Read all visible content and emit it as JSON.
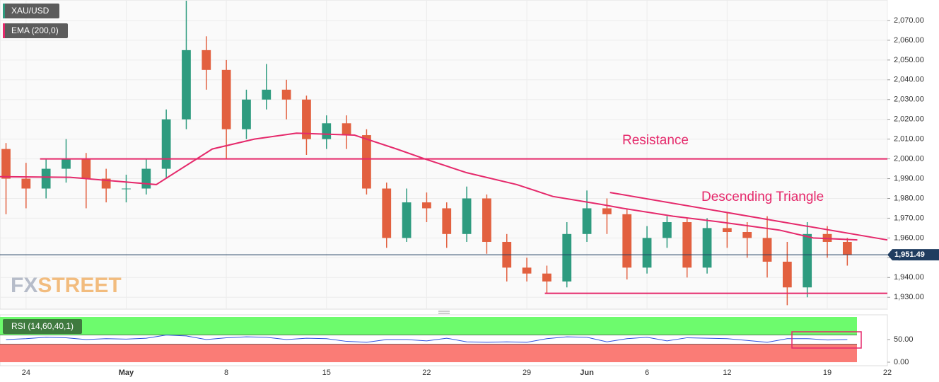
{
  "chart_data": [
    {
      "type": "candlestick",
      "legend": [
        "XAU/USD",
        "EMA (200,0)"
      ],
      "x": [
        -1,
        0,
        1,
        2,
        3,
        4,
        5,
        6,
        7,
        8,
        9,
        10,
        11,
        12,
        13,
        14,
        15,
        16,
        17,
        18,
        19,
        20,
        21,
        22,
        23,
        24,
        25,
        26,
        27,
        28,
        29,
        30,
        31,
        32,
        33,
        34,
        35,
        36,
        37,
        38,
        39,
        40,
        41
      ],
      "open": [
        2005,
        1990,
        1985,
        1995,
        2000,
        1990,
        1985,
        1985,
        1995,
        2020,
        2055,
        2045,
        2015,
        2030,
        2035,
        2030,
        2010,
        2018,
        2012,
        1985,
        1960,
        1978,
        1975,
        1962,
        1980,
        1958,
        1945,
        1942,
        1938,
        1962,
        1975,
        1972,
        1945,
        1960,
        1968,
        1945,
        1965,
        1963,
        1960,
        1948,
        1935,
        1962,
        1958
      ],
      "high": [
        2008,
        1998,
        2000,
        2010,
        2003,
        1995,
        1992,
        2000,
        2025,
        2080,
        2062,
        2050,
        2035,
        2048,
        2040,
        2032,
        2022,
        2022,
        2015,
        1988,
        1985,
        1983,
        1978,
        1986,
        1982,
        1962,
        1950,
        1946,
        1968,
        1984,
        1980,
        1975,
        1966,
        1971,
        1970,
        1970,
        1973,
        1968,
        1971,
        1958,
        1968,
        1966,
        1960
      ],
      "low": [
        1972,
        1975,
        1980,
        1988,
        1975,
        1978,
        1978,
        1982,
        1990,
        2015,
        2035,
        2000,
        2010,
        2025,
        2020,
        2002,
        2005,
        2005,
        1982,
        1955,
        1958,
        1968,
        1955,
        1958,
        1952,
        1938,
        1938,
        1932,
        1935,
        1958,
        1962,
        1939,
        1942,
        1955,
        1940,
        1942,
        1955,
        1950,
        1940,
        1926,
        1930,
        1950,
        1946
      ],
      "close": [
        1990,
        1985,
        1995,
        2000,
        1990,
        1985,
        1985,
        1995,
        2020,
        2055,
        2045,
        2015,
        2030,
        2035,
        2030,
        2010,
        2018,
        2012,
        1985,
        1960,
        1978,
        1975,
        1962,
        1980,
        1958,
        1945,
        1942,
        1938,
        1962,
        1975,
        1972,
        1945,
        1960,
        1968,
        1945,
        1965,
        1963,
        1960,
        1948,
        1935,
        1962,
        1958,
        1951.49
      ],
      "up_color": "#2e9b7f",
      "down_color": "#e2603f",
      "ema": {
        "color": "#e5296b",
        "x": [
          -1.3,
          2.2,
          6.5,
          9.3,
          11.4,
          13.5,
          16.4,
          18.5,
          19.9,
          22,
          24.5,
          26.3,
          28.7,
          29.8,
          32.3,
          34.7,
          37.6,
          39.3,
          41.5
        ],
        "y": [
          1991,
          1990.7,
          1987,
          2005,
          2010,
          2013,
          2012,
          2005,
          2000,
          1993,
          1987,
          1981,
          1977,
          1975,
          1971,
          1968,
          1964,
          1960,
          1959
        ]
      },
      "trend_lines": {
        "color": "#e5296b",
        "lines": [
          {
            "x": [
              0.7,
              43
            ],
            "y": [
              2000,
              2000
            ]
          },
          {
            "x": [
              25.9,
              43
            ],
            "y": [
              1932,
              1932
            ]
          },
          {
            "x": [
              29.15,
              43
            ],
            "y": [
              1983,
              1959
            ]
          }
        ]
      },
      "annotations": [
        "Resistance",
        "Descending Triangle"
      ],
      "watermark": [
        "FX",
        "STREET"
      ],
      "last_price": {
        "value": 1951.49,
        "label": "1,951.49"
      },
      "xlim": [
        -1.3,
        43
      ],
      "ylim": [
        1924,
        2080
      ],
      "yticks": [
        {
          "value": 1930,
          "label": "1,930.00"
        },
        {
          "value": 1940,
          "label": "1,940.00"
        },
        {
          "value": 1950,
          "label": "1,950.00"
        },
        {
          "value": 1960,
          "label": "1,960.00"
        },
        {
          "value": 1970,
          "label": "1,970.00"
        },
        {
          "value": 1980,
          "label": "1,980.00"
        },
        {
          "value": 1990,
          "label": "1,990.00"
        },
        {
          "value": 2000,
          "label": "2,000.00"
        },
        {
          "value": 2010,
          "label": "2,010.00"
        },
        {
          "value": 2020,
          "label": "2,020.00"
        },
        {
          "value": 2030,
          "label": "2,030.00"
        },
        {
          "value": 2040,
          "label": "2,040.00"
        },
        {
          "value": 2050,
          "label": "2,050.00"
        },
        {
          "value": 2060,
          "label": "2,060.00"
        },
        {
          "value": 2070,
          "label": "2,070.00"
        }
      ],
      "xticks": [
        {
          "value": 0,
          "label": "24"
        },
        {
          "value": 5,
          "label": "May"
        },
        {
          "value": 10,
          "label": "8"
        },
        {
          "value": 15,
          "label": "15"
        },
        {
          "value": 20,
          "label": "22"
        },
        {
          "value": 25,
          "label": "29"
        },
        {
          "value": 28,
          "label": "Jun"
        },
        {
          "value": 31,
          "label": "6"
        },
        {
          "value": 35,
          "label": "12"
        },
        {
          "value": 40,
          "label": "19"
        },
        {
          "value": 43,
          "label": "22"
        }
      ],
      "grid": true
    },
    {
      "type": "line",
      "legend": "RSI (14,60,40,1)",
      "x": [
        -1,
        0,
        1,
        2,
        3,
        4,
        5,
        6,
        7,
        8,
        9,
        10,
        11,
        12,
        13,
        14,
        15,
        16,
        17,
        18,
        19,
        20,
        21,
        22,
        23,
        24,
        25,
        26,
        27,
        28,
        29,
        30,
        31,
        32,
        33,
        34,
        35,
        36,
        37,
        38,
        39,
        40,
        41
      ],
      "values": [
        50,
        52,
        55,
        54,
        50,
        52,
        51,
        53,
        60,
        58,
        50,
        54,
        56,
        55,
        50,
        53,
        52,
        46,
        44,
        50,
        50,
        47,
        53,
        45,
        44,
        45,
        44,
        52,
        56,
        55,
        45,
        52,
        55,
        47,
        54,
        53,
        52,
        48,
        44,
        52,
        52,
        49,
        50
      ],
      "color": "#2b4fe0",
      "upper": 60,
      "lower": 40,
      "upper_color": "#6dfb6d",
      "lower_color": "#fa7c76",
      "xlim": [
        -1.3,
        43
      ],
      "ylim": [
        0,
        100
      ],
      "yticks": [
        {
          "value": 0,
          "label": "0.00"
        },
        {
          "value": 50,
          "label": "50.00"
        }
      ]
    }
  ]
}
